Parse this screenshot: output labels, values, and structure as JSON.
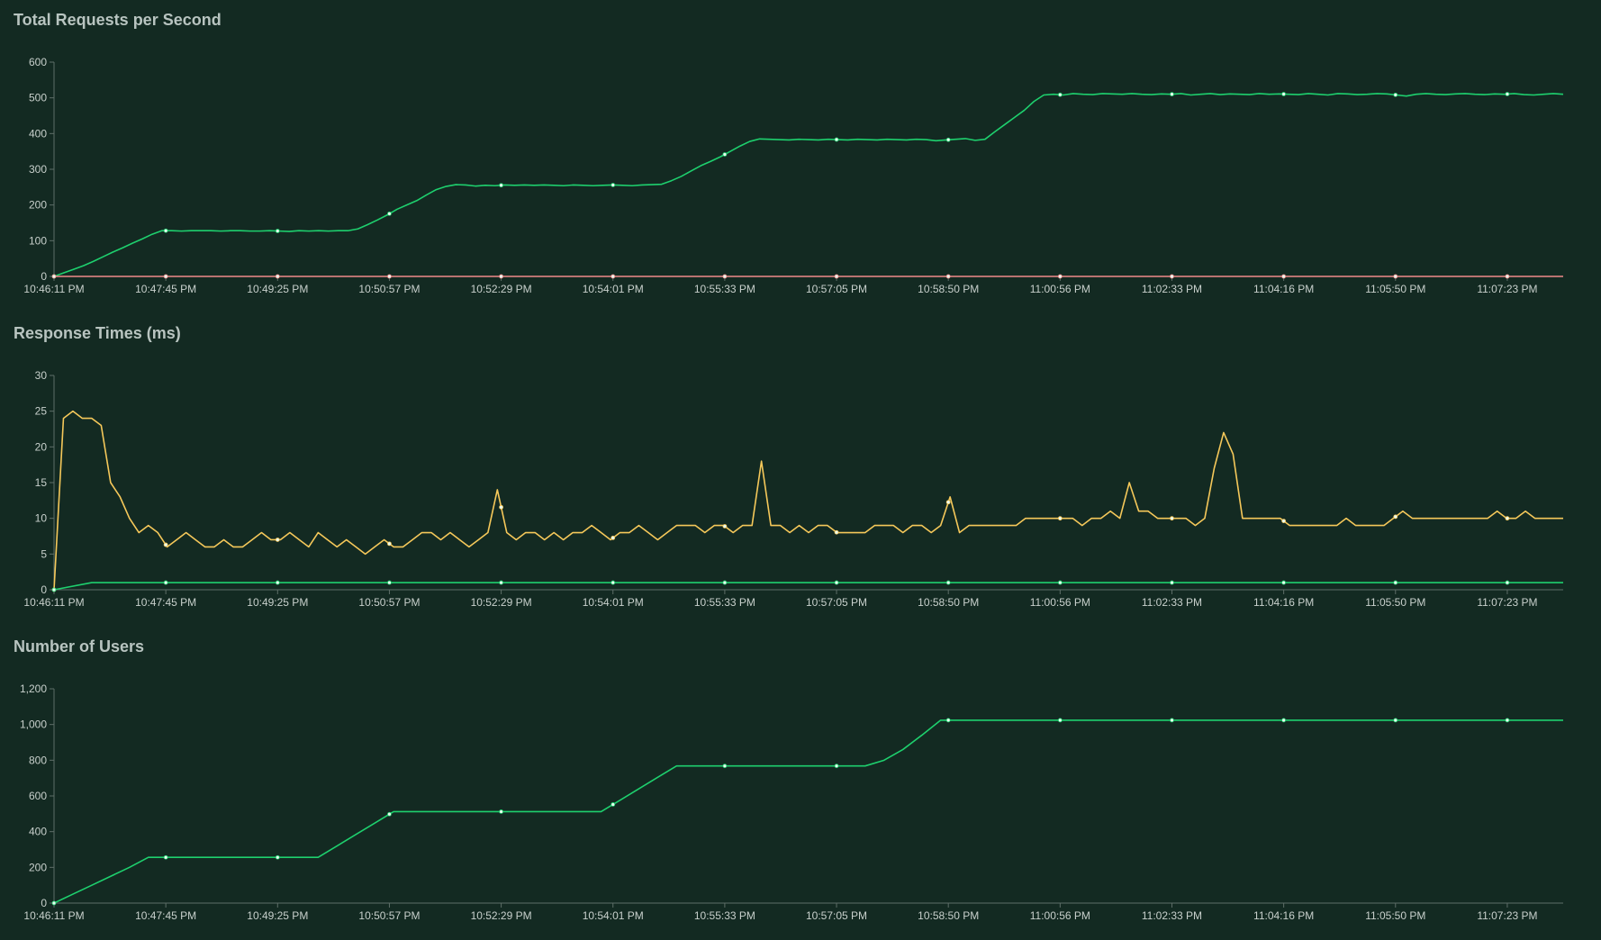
{
  "chart_data": [
    {
      "type": "line",
      "title": "Total Requests per Second",
      "xlabel": "",
      "ylabel": "",
      "ylim": [
        0,
        600
      ],
      "y_ticks": [
        "0",
        "100",
        "200",
        "300",
        "400",
        "500",
        "600"
      ],
      "x_tick_labels": [
        "10:46:11 PM",
        "10:47:45 PM",
        "10:49:25 PM",
        "10:50:57 PM",
        "10:52:29 PM",
        "10:54:01 PM",
        "10:55:33 PM",
        "10:57:05 PM",
        "10:58:50 PM",
        "11:00:56 PM",
        "11:02:33 PM",
        "11:04:16 PM",
        "11:05:50 PM",
        "11:07:23 PM"
      ],
      "grid": false,
      "series": [
        {
          "color": "#1ed06e",
          "values": [
            0,
            10,
            20,
            30,
            42,
            55,
            68,
            80,
            93,
            105,
            118,
            128,
            128,
            127,
            128,
            128,
            128,
            127,
            128,
            128,
            127,
            127,
            128,
            127,
            126,
            128,
            127,
            128,
            127,
            128,
            128,
            133,
            145,
            158,
            172,
            188,
            200,
            212,
            228,
            243,
            252,
            257,
            256,
            253,
            255,
            254,
            256,
            255,
            256,
            255,
            256,
            255,
            254,
            256,
            255,
            254,
            255,
            256,
            255,
            254,
            256,
            257,
            258,
            268,
            280,
            295,
            310,
            322,
            335,
            350,
            365,
            378,
            385,
            384,
            383,
            382,
            384,
            383,
            382,
            384,
            383,
            382,
            384,
            383,
            382,
            384,
            383,
            382,
            384,
            383,
            380,
            382,
            384,
            386,
            381,
            384,
            405,
            425,
            445,
            465,
            490,
            508,
            510,
            508,
            512,
            510,
            509,
            512,
            511,
            510,
            512,
            510,
            509,
            511,
            510,
            512,
            508,
            510,
            512,
            509,
            511,
            510,
            509,
            512,
            510,
            511,
            510,
            509,
            512,
            510,
            508,
            512,
            511,
            509,
            510,
            512,
            511,
            508,
            505,
            510,
            512,
            510,
            509,
            511,
            512,
            510,
            509,
            511,
            510,
            512,
            509,
            508,
            510,
            512,
            510
          ]
        },
        {
          "color": "#f08a8a",
          "values": [
            0,
            0
          ]
        }
      ]
    },
    {
      "type": "line",
      "title": "Response Times (ms)",
      "xlabel": "",
      "ylabel": "",
      "ylim": [
        0,
        30
      ],
      "y_ticks": [
        "0",
        "5",
        "10",
        "15",
        "20",
        "25",
        "30"
      ],
      "x_tick_labels": [
        "10:46:11 PM",
        "10:47:45 PM",
        "10:49:25 PM",
        "10:50:57 PM",
        "10:52:29 PM",
        "10:54:01 PM",
        "10:55:33 PM",
        "10:57:05 PM",
        "10:58:50 PM",
        "11:00:56 PM",
        "11:02:33 PM",
        "11:04:16 PM",
        "11:05:50 PM",
        "11:07:23 PM"
      ],
      "grid": false,
      "series": [
        {
          "color": "#f5c85a",
          "values": [
            0,
            24,
            25,
            24,
            24,
            23,
            15,
            13,
            10,
            8,
            9,
            8,
            6,
            7,
            8,
            7,
            6,
            6,
            7,
            6,
            6,
            7,
            8,
            7,
            7,
            8,
            7,
            6,
            8,
            7,
            6,
            7,
            6,
            5,
            6,
            7,
            6,
            6,
            7,
            8,
            8,
            7,
            8,
            7,
            6,
            7,
            8,
            14,
            8,
            7,
            8,
            8,
            7,
            8,
            7,
            8,
            8,
            9,
            8,
            7,
            8,
            8,
            9,
            8,
            7,
            8,
            9,
            9,
            9,
            8,
            9,
            9,
            8,
            9,
            9,
            18,
            9,
            9,
            8,
            9,
            8,
            9,
            9,
            8,
            8,
            8,
            8,
            9,
            9,
            9,
            8,
            9,
            9,
            8,
            9,
            13,
            8,
            9,
            9,
            9,
            9,
            9,
            9,
            10,
            10,
            10,
            10,
            10,
            10,
            9,
            10,
            10,
            11,
            10,
            15,
            11,
            11,
            10,
            10,
            10,
            10,
            9,
            10,
            17,
            22,
            19,
            10,
            10,
            10,
            10,
            10,
            9,
            9,
            9,
            9,
            9,
            9,
            10,
            9,
            9,
            9,
            9,
            10,
            11,
            10,
            10,
            10,
            10,
            10,
            10,
            10,
            10,
            10,
            11,
            10,
            10,
            11,
            10,
            10,
            10,
            10
          ]
        },
        {
          "color": "#1ed06e",
          "values": [
            0,
            1,
            1,
            1,
            1,
            1,
            1,
            1,
            1,
            1,
            1,
            1,
            1,
            1,
            1,
            1,
            1,
            1,
            1,
            1,
            1,
            1,
            1,
            1,
            1,
            1,
            1,
            1,
            1,
            1,
            1,
            1,
            1,
            1,
            1,
            1,
            1,
            1,
            1,
            1,
            1
          ]
        }
      ]
    },
    {
      "type": "line",
      "title": "Number of Users",
      "xlabel": "",
      "ylabel": "",
      "ylim": [
        0,
        1200
      ],
      "y_ticks": [
        "0",
        "200",
        "400",
        "600",
        "800",
        "1,000",
        "1,200"
      ],
      "x_tick_labels": [
        "10:46:11 PM",
        "10:47:45 PM",
        "10:49:25 PM",
        "10:50:57 PM",
        "10:52:29 PM",
        "10:54:01 PM",
        "10:55:33 PM",
        "10:57:05 PM",
        "10:58:50 PM",
        "11:00:56 PM",
        "11:02:33 PM",
        "11:04:16 PM",
        "11:05:50 PM",
        "11:07:23 PM"
      ],
      "grid": false,
      "series": [
        {
          "color": "#1ed06e",
          "values": [
            0,
            50,
            100,
            150,
            200,
            256,
            256,
            256,
            256,
            256,
            256,
            256,
            256,
            256,
            256,
            320,
            384,
            448,
            512,
            512,
            512,
            512,
            512,
            512,
            512,
            512,
            512,
            512,
            512,
            512,
            576,
            640,
            704,
            768,
            768,
            768,
            768,
            768,
            768,
            768,
            768,
            768,
            768,
            768,
            800,
            860,
            940,
            1024,
            1024,
            1024,
            1024,
            1024,
            1024,
            1024,
            1024,
            1024,
            1024,
            1024,
            1024,
            1024,
            1024,
            1024,
            1024,
            1024,
            1024,
            1024,
            1024,
            1024,
            1024,
            1024,
            1024,
            1024,
            1024,
            1024,
            1024,
            1024,
            1024,
            1024,
            1024,
            1024,
            1024
          ]
        }
      ]
    }
  ]
}
